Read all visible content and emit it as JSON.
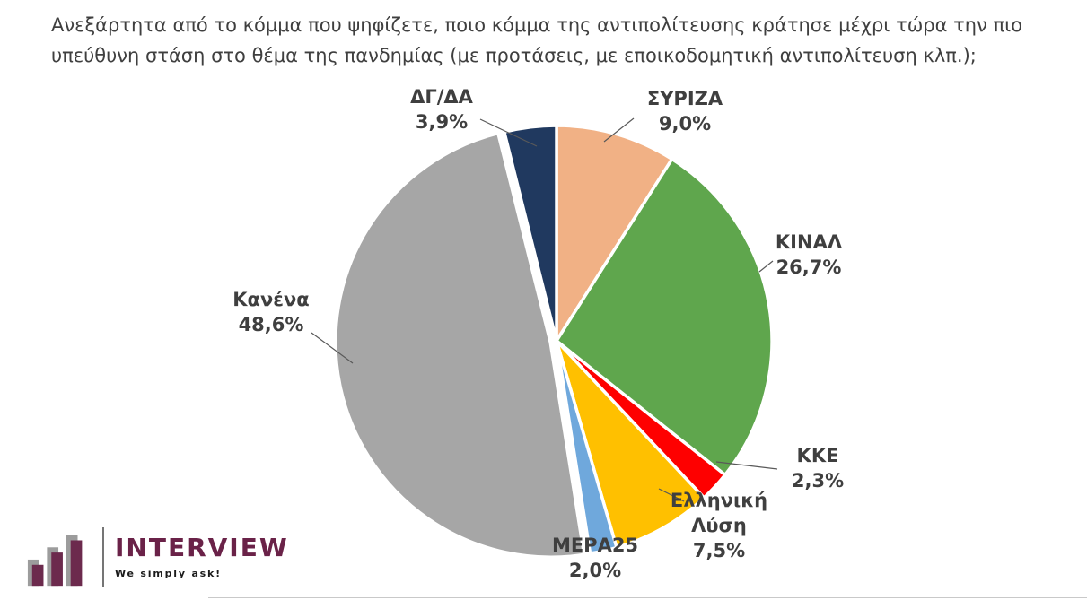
{
  "title": {
    "line1": "Ανεξάρτητα από το κόμμα που ψηφίζετε, ποιο κόμμα της αντιπολίτευσης κράτησε μέχρι τώρα την πιο",
    "line2": "υπεύθυνη στάση στο θέμα της πανδημίας (με προτάσεις, με εποικοδομητική αντιπολίτευση κλπ.);"
  },
  "chart_data": {
    "type": "pie",
    "title": "Ανεξάρτητα από το κόμμα που ψηφίζετε, ποιο κόμμα της αντιπολίτευσης κράτησε μέχρι τώρα την πιο υπεύθυνη στάση στο θέμα της πανδημίας (με προτάσεις, με εποικοδομητική αντιπολίτευση κλπ.);",
    "legend": "none",
    "value_suffix": "%",
    "start_angle_deg": 0,
    "direction": "clockwise",
    "slices": [
      {
        "label": "ΣΥΡΙΖΑ",
        "value": 9.0,
        "display": "9,0%",
        "color": "#F1B185"
      },
      {
        "label": "ΚΙΝΑΛ",
        "value": 26.7,
        "display": "26,7%",
        "color": "#5FA64D"
      },
      {
        "label": "ΚΚΕ",
        "value": 2.3,
        "display": "2,3%",
        "color": "#FE0000"
      },
      {
        "label": "Ελληνική Λύση",
        "value": 7.5,
        "display": "7,5%",
        "color": "#FFC000"
      },
      {
        "label": "ΜΕΡΑ25",
        "value": 2.0,
        "display": "2,0%",
        "color": "#6FA8DC"
      },
      {
        "label": "Κανένα",
        "value": 48.6,
        "display": "48,6%",
        "color": "#A6A6A6"
      },
      {
        "label": "ΔΓ/ΔΑ",
        "value": 3.9,
        "display": "3,9%",
        "color": "#20395F"
      }
    ]
  },
  "logo": {
    "name": "INTERVIEW",
    "tagline": "We simply ask!",
    "brand_color": "#6A2248"
  }
}
